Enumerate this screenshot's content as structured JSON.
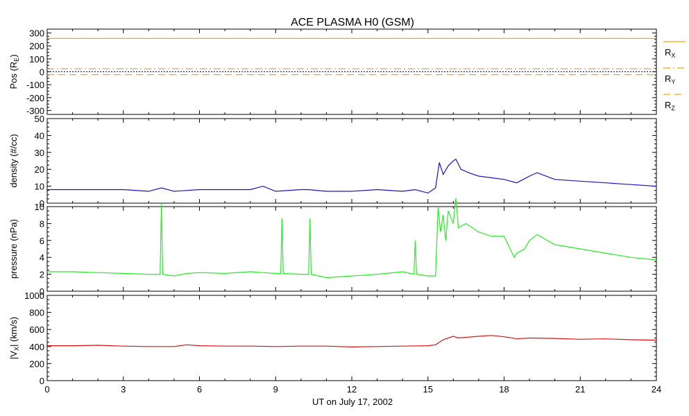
{
  "title": "ACE PLASMA H0 (GSM)",
  "xlabel": "UT on July 17, 2002",
  "chart_data": {
    "type": "line",
    "title": "ACE PLASMA H0 (GSM)",
    "xlabel": "UT on July 17, 2002",
    "x_ticks": [
      "0",
      "3",
      "6",
      "9",
      "12",
      "15",
      "18",
      "21",
      "24"
    ],
    "xlim": [
      0,
      24
    ],
    "panels": [
      {
        "id": "pos",
        "ylabel": "Pos (R",
        "ylabel_sub": "E",
        "ylabel_end": ")",
        "ylim": [
          -330,
          330
        ],
        "y_ticks": [
          "300",
          "200",
          "100",
          "0",
          "-100",
          "-200",
          "-300"
        ],
        "y_tick_values": [
          300,
          200,
          100,
          0,
          -100,
          -200,
          -300
        ],
        "zero_line": true,
        "series": [
          {
            "name": "R",
            "name_sub": "X",
            "color": "#ffa500",
            "style": "solid",
            "x": [
              0,
              24
            ],
            "y": [
              258,
              258
            ]
          },
          {
            "name": "R",
            "name_sub": "Y",
            "color": "#ffa500",
            "style": "dashdot",
            "x": [
              0,
              24
            ],
            "y": [
              22,
              22
            ]
          },
          {
            "name": "R",
            "name_sub": "Z",
            "color": "#ffa500",
            "style": "dash",
            "x": [
              0,
              24
            ],
            "y": [
              -22,
              -22
            ]
          }
        ]
      },
      {
        "id": "density",
        "ylabel": "density (#/cc)",
        "ylim": [
          0,
          50
        ],
        "y_ticks": [
          "50",
          "40",
          "30",
          "20",
          "10",
          "0"
        ],
        "y_tick_values": [
          50,
          40,
          30,
          20,
          10,
          0
        ],
        "series": [
          {
            "name": "density",
            "color": "#1a10cc",
            "style": "solid",
            "x": [
              0,
              1,
              2,
              3,
              4,
              4.5,
              5,
              6,
              7,
              8,
              8.5,
              9,
              10,
              10.3,
              11,
              12,
              13,
              14,
              14.5,
              15,
              15.3,
              15.45,
              15.6,
              15.8,
              16,
              16.1,
              16.3,
              16.6,
              17,
              17.5,
              18,
              18.5,
              19,
              19.3,
              20,
              21,
              22,
              23,
              24
            ],
            "y": [
              8,
              8,
              8,
              8,
              7,
              9,
              7,
              8,
              8,
              8,
              10,
              7,
              8,
              8,
              7,
              7,
              8,
              7,
              8,
              6,
              9,
              24,
              17,
              22,
              25,
              26,
              20,
              18,
              16,
              15,
              14,
              12,
              16,
              18,
              14,
              13,
              12,
              11,
              10
            ]
          }
        ]
      },
      {
        "id": "pressure",
        "ylabel": "pressure (nPa)",
        "ylim": [
          0,
          10
        ],
        "y_ticks": [
          "10",
          "8",
          "6",
          "4",
          "2",
          "0"
        ],
        "y_tick_values": [
          10,
          8,
          6,
          4,
          2,
          0
        ],
        "series": [
          {
            "name": "pressure",
            "color": "#22ee22",
            "style": "solid",
            "x": [
              0,
              1,
              2,
              3,
              4,
              4.45,
              4.5,
              4.55,
              5,
              5.5,
              6,
              7,
              8,
              8.5,
              9,
              9.2,
              9.25,
              9.3,
              10,
              10.3,
              10.35,
              10.4,
              11,
              12,
              13,
              14,
              14.45,
              14.5,
              14.55,
              15,
              15.3,
              15.4,
              15.5,
              15.6,
              15.7,
              15.8,
              16,
              16.1,
              16.2,
              16.5,
              17,
              17.5,
              18,
              18.4,
              18.5,
              18.8,
              19,
              19.3,
              20,
              21,
              22,
              23,
              24
            ],
            "y": [
              2.3,
              2.3,
              2.2,
              2.1,
              2,
              2,
              10.3,
              2,
              1.8,
              2.1,
              2.2,
              2.1,
              2.3,
              2.2,
              2.1,
              2.1,
              8.6,
              2.1,
              2,
              2,
              8.6,
              2,
              1.6,
              1.8,
              2,
              2.3,
              2,
              6,
              2,
              1.8,
              1.8,
              10,
              7,
              9,
              6,
              9.5,
              8,
              11,
              7.5,
              8,
              7,
              6.5,
              6.5,
              4,
              4.5,
              5,
              6,
              6.7,
              5.5,
              5,
              4.5,
              4,
              3.7
            ]
          }
        ]
      },
      {
        "id": "vx",
        "ylabel": "|V",
        "ylabel_sub": "X",
        "ylabel_end": "| (km/s)",
        "ylim": [
          0,
          1000
        ],
        "y_ticks": [
          "1000",
          "800",
          "600",
          "400",
          "200",
          "0"
        ],
        "y_tick_values": [
          1000,
          800,
          600,
          400,
          200,
          0
        ],
        "series": [
          {
            "name": "|Vx|",
            "color": "#dd1111",
            "style": "solid",
            "x": [
              0,
              1,
              2,
              3,
              4,
              5,
              5.5,
              6,
              7,
              8,
              9,
              10,
              11,
              12,
              13,
              14,
              15,
              15.3,
              15.6,
              16,
              16.2,
              17,
              17.5,
              18,
              18.5,
              19,
              20,
              21,
              22,
              23,
              24
            ],
            "y": [
              410,
              410,
              415,
              405,
              400,
              400,
              420,
              410,
              405,
              405,
              400,
              405,
              405,
              395,
              400,
              405,
              410,
              420,
              480,
              520,
              500,
              520,
              530,
              515,
              490,
              500,
              495,
              485,
              490,
              480,
              475
            ]
          }
        ]
      }
    ]
  }
}
